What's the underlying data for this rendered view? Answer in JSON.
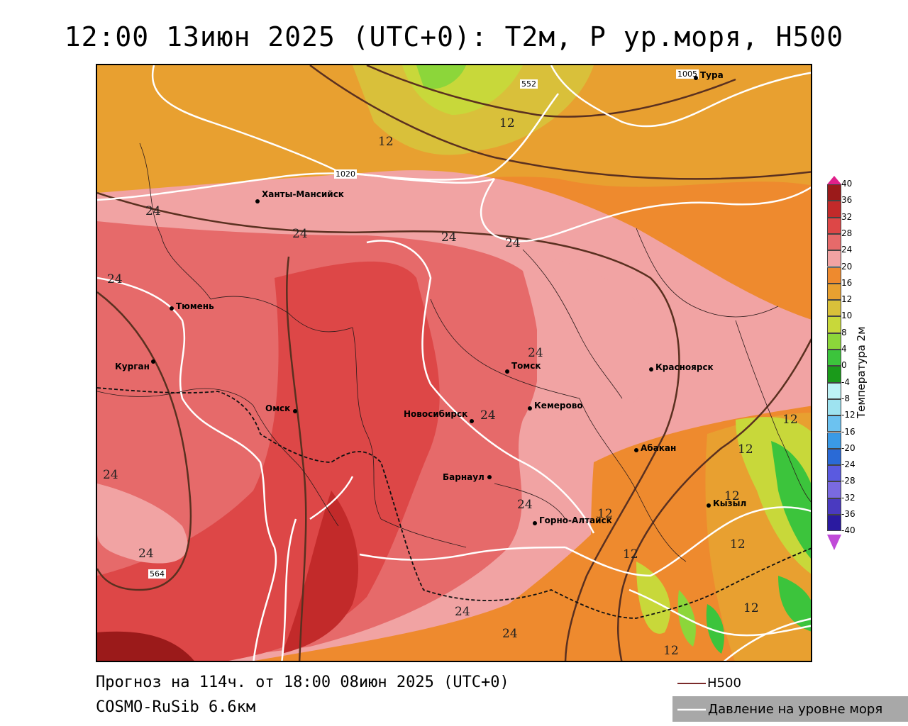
{
  "title": "12:00 13июн 2025 (UTC+0): Т2м, Р ур.моря, Н500",
  "footer": {
    "forecast": "Прогноз на 114ч. от 18:00 08июн 2025 (UTC+0)",
    "model": "COSMO-RuSib 6.6км"
  },
  "map_legend": {
    "h500": "H500",
    "pressure": "Давление на уровне моря"
  },
  "colorbar": {
    "title": "Температура 2м",
    "ticks": [
      "40",
      "36",
      "32",
      "28",
      "24",
      "20",
      "16",
      "12",
      "10",
      "8",
      "4",
      "0",
      "-4",
      "-8",
      "-12",
      "-16",
      "-20",
      "-24",
      "-28",
      "-32",
      "-36",
      "-40"
    ],
    "colors": [
      "#9b1a1a",
      "#c22a2a",
      "#dd4747",
      "#e66a6a",
      "#f1a3a3",
      "#ee8a2e",
      "#e8a030",
      "#d9c03a",
      "#c8d83a",
      "#8cd63a",
      "#3cc43c",
      "#1a9a1a",
      "#bdf2f5",
      "#9ee3f0",
      "#6cc2f0",
      "#3a9ae6",
      "#2a6ad6",
      "#5a5ae0",
      "#7a6ae0",
      "#4a3ac0",
      "#2a1aa0"
    ]
  },
  "cities": [
    {
      "name": "Тура"
    },
    {
      "name": "Ханты-Мансийск"
    },
    {
      "name": "Тюмень"
    },
    {
      "name": "Курган"
    },
    {
      "name": "Омск"
    },
    {
      "name": "Новосибирск"
    },
    {
      "name": "Томск"
    },
    {
      "name": "Кемерово"
    },
    {
      "name": "Красноярск"
    },
    {
      "name": "Абакан"
    },
    {
      "name": "Барнаул"
    },
    {
      "name": "Горно-Алтайск"
    },
    {
      "name": "Кызыл"
    }
  ],
  "contour_labels": {
    "h500": [
      "552",
      "564"
    ],
    "pressure": [
      "1005",
      "1020"
    ],
    "temperature": [
      "24",
      "12"
    ]
  }
}
